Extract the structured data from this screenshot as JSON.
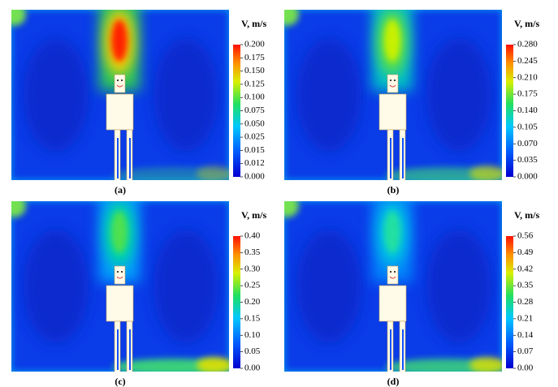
{
  "panels": [
    {
      "label": "(a)",
      "colorbar": {
        "title": "V, m/s",
        "ticks": [
          "0.200",
          "0.175",
          "0.150",
          "0.125",
          "0.100",
          "0.075",
          "0.050",
          "0.025",
          "0.015",
          "0.012",
          "0.000"
        ]
      }
    },
    {
      "label": "(b)",
      "colorbar": {
        "title": "V, m/s",
        "ticks": [
          "0.280",
          "0.245",
          "0.210",
          "0.175",
          "0.140",
          "0.105",
          "0.070",
          "0.035",
          "0.000"
        ]
      }
    },
    {
      "label": "(c)",
      "colorbar": {
        "title": "V, m/s",
        "ticks": [
          "0.40",
          "0.35",
          "0.30",
          "0.25",
          "0.20",
          "0.15",
          "0.10",
          "0.05",
          "0.00"
        ]
      }
    },
    {
      "label": "(d)",
      "colorbar": {
        "title": "V, m/s",
        "ticks": [
          "0.56",
          "0.49",
          "0.42",
          "0.35",
          "0.28",
          "0.21",
          "0.14",
          "0.07",
          "0.00"
        ]
      }
    }
  ]
}
